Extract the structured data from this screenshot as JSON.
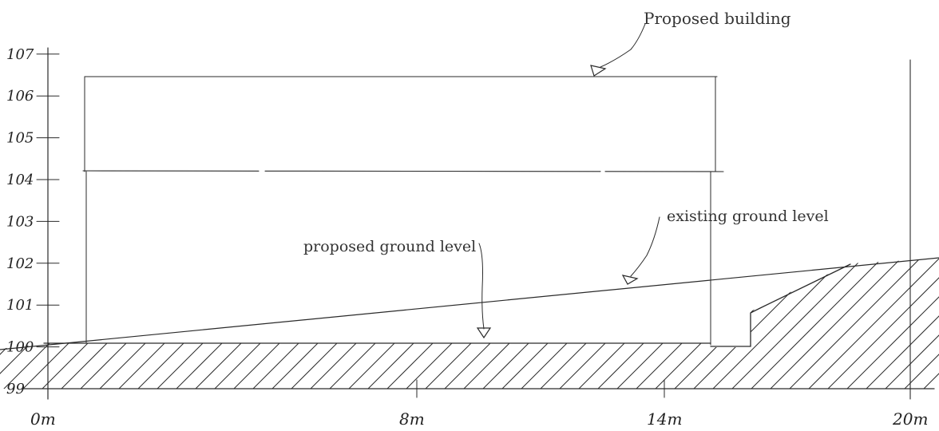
{
  "y_axis": {
    "ticks": [
      "99",
      "100",
      "101",
      "102",
      "103",
      "104",
      "105",
      "106",
      "107"
    ]
  },
  "x_axis": {
    "ticks": [
      "0m",
      "8m",
      "14m",
      "20m"
    ]
  },
  "annotations": {
    "proposed_building": "Proposed building",
    "existing_ground_level": "existing ground level",
    "proposed_ground_level": "proposed ground level"
  },
  "colors": {
    "ink": "#2a2a2a",
    "paper": "#ffffff"
  }
}
